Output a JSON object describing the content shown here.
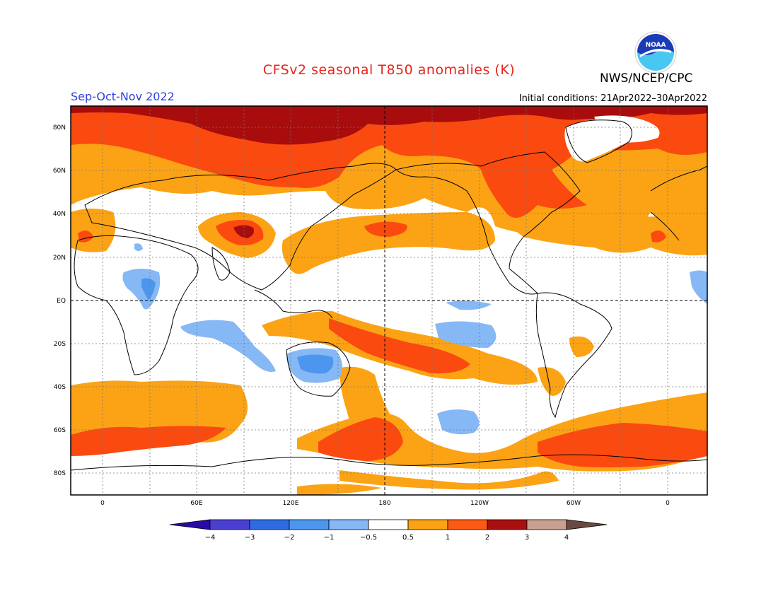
{
  "title": "CFSv2 seasonal T850 anomalies (K)",
  "agency": "NWS/NCEP/CPC",
  "logo_text": "NOAA",
  "season": "Sep-Oct-Nov 2022",
  "initial_conditions": "Initial conditions: 21Apr2022–30Apr2022",
  "map": {
    "lat_labels": [
      "80N",
      "60N",
      "40N",
      "20N",
      "EQ",
      "20S",
      "40S",
      "60S",
      "80S"
    ],
    "lon_labels": [
      "0",
      "60E",
      "120E",
      "180",
      "120W",
      "60W",
      "0"
    ],
    "grid": true
  },
  "colorbar": {
    "tick_labels": [
      "−4",
      "−3",
      "−2",
      "−1",
      "−0.5",
      "0.5",
      "1",
      "2",
      "3",
      "4"
    ],
    "colors": [
      "#2a0aa6",
      "#4a3fd0",
      "#2f6be0",
      "#4d96ee",
      "#86b8f6",
      "#ffffff",
      "#fba314",
      "#fb5a14",
      "#a81010",
      "#c8a090",
      "#6a4a40"
    ]
  },
  "colors": {
    "title": "#e8241c",
    "season": "#2c3fe0",
    "orange": "#fba314",
    "red": "#fb4a10",
    "darkred": "#a80c0c",
    "blue_light": "#86b8f6",
    "blue": "#4d96ee"
  }
}
